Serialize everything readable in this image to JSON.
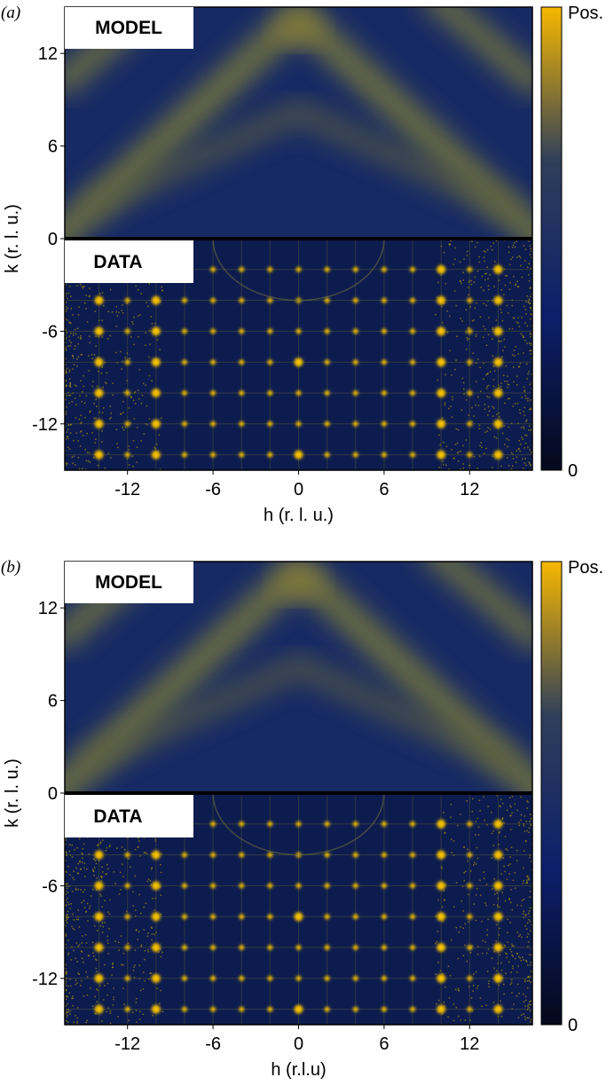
{
  "chart_data": [
    {
      "type": "heatmap",
      "panel": "(a)",
      "top_label": "MODEL",
      "bottom_label": "DATA",
      "xlabel": "h (r. l. u.)",
      "ylabel": "k (r. l. u.)",
      "xlim": [
        -16.4,
        16.4
      ],
      "ylim": [
        -15,
        15
      ],
      "xticks": [
        -12,
        -6,
        0,
        6,
        12
      ],
      "yticks": [
        -12,
        -6,
        0,
        6,
        12
      ],
      "colorbar_labels": [
        "Pos.",
        "0"
      ],
      "colormap": [
        "#f7b800",
        "#2f3f5a",
        "#0d1f6a",
        "#05091c"
      ]
    },
    {
      "type": "heatmap",
      "panel": "(b)",
      "top_label": "MODEL",
      "bottom_label": "DATA",
      "xlabel": "h (r.l.u)",
      "ylabel": "k (r. l. u.)",
      "xlim": [
        -16.4,
        16.4
      ],
      "ylim": [
        -15,
        15
      ],
      "xticks": [
        -12,
        -6,
        0,
        6,
        12
      ],
      "yticks": [
        -12,
        -6,
        0,
        6,
        12
      ],
      "colorbar_labels": [
        "Pos.",
        "0"
      ],
      "colormap": [
        "#f7b800",
        "#2f3f5a",
        "#0d1f6a",
        "#05091c"
      ]
    }
  ]
}
